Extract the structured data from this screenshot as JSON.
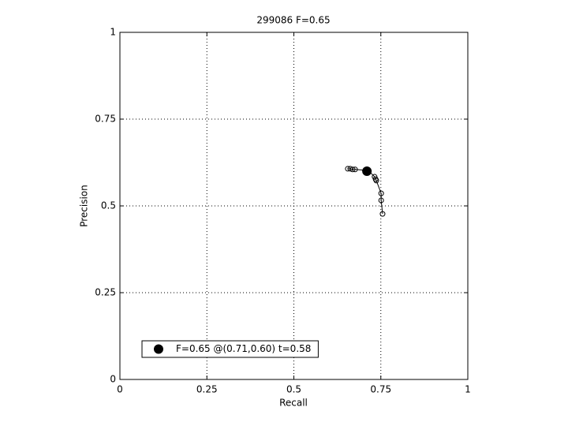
{
  "chart_data": {
    "type": "line",
    "title": "299086 F=0.65",
    "x_label": "Recall",
    "y_label": "Precision",
    "series": [
      {
        "x": [
          0.655,
          0.662,
          0.669,
          0.676,
          0.714,
          0.732,
          0.735,
          0.737,
          0.751,
          0.751,
          0.755
        ],
        "values": [
          0.607,
          0.607,
          0.605,
          0.605,
          0.602,
          0.584,
          0.577,
          0.573,
          0.536,
          0.516,
          0.477
        ],
        "color": "#000000",
        "marker": "circle",
        "linestyle": "solid"
      },
      {
        "name": "F=0.65 @(0.71,0.60) t=0.58",
        "x": [
          0.71
        ],
        "values": [
          0.6
        ],
        "color": "#000000",
        "marker": "filled-circle",
        "linestyle": "none"
      }
    ],
    "xlim": [
      0,
      1
    ],
    "ylim": [
      0,
      1
    ],
    "xticks": [
      0,
      0.25,
      0.5,
      0.75,
      1
    ],
    "yticks": [
      0,
      0.25,
      0.5,
      0.75,
      1
    ],
    "grid": true,
    "legend_position": "lower-left"
  }
}
